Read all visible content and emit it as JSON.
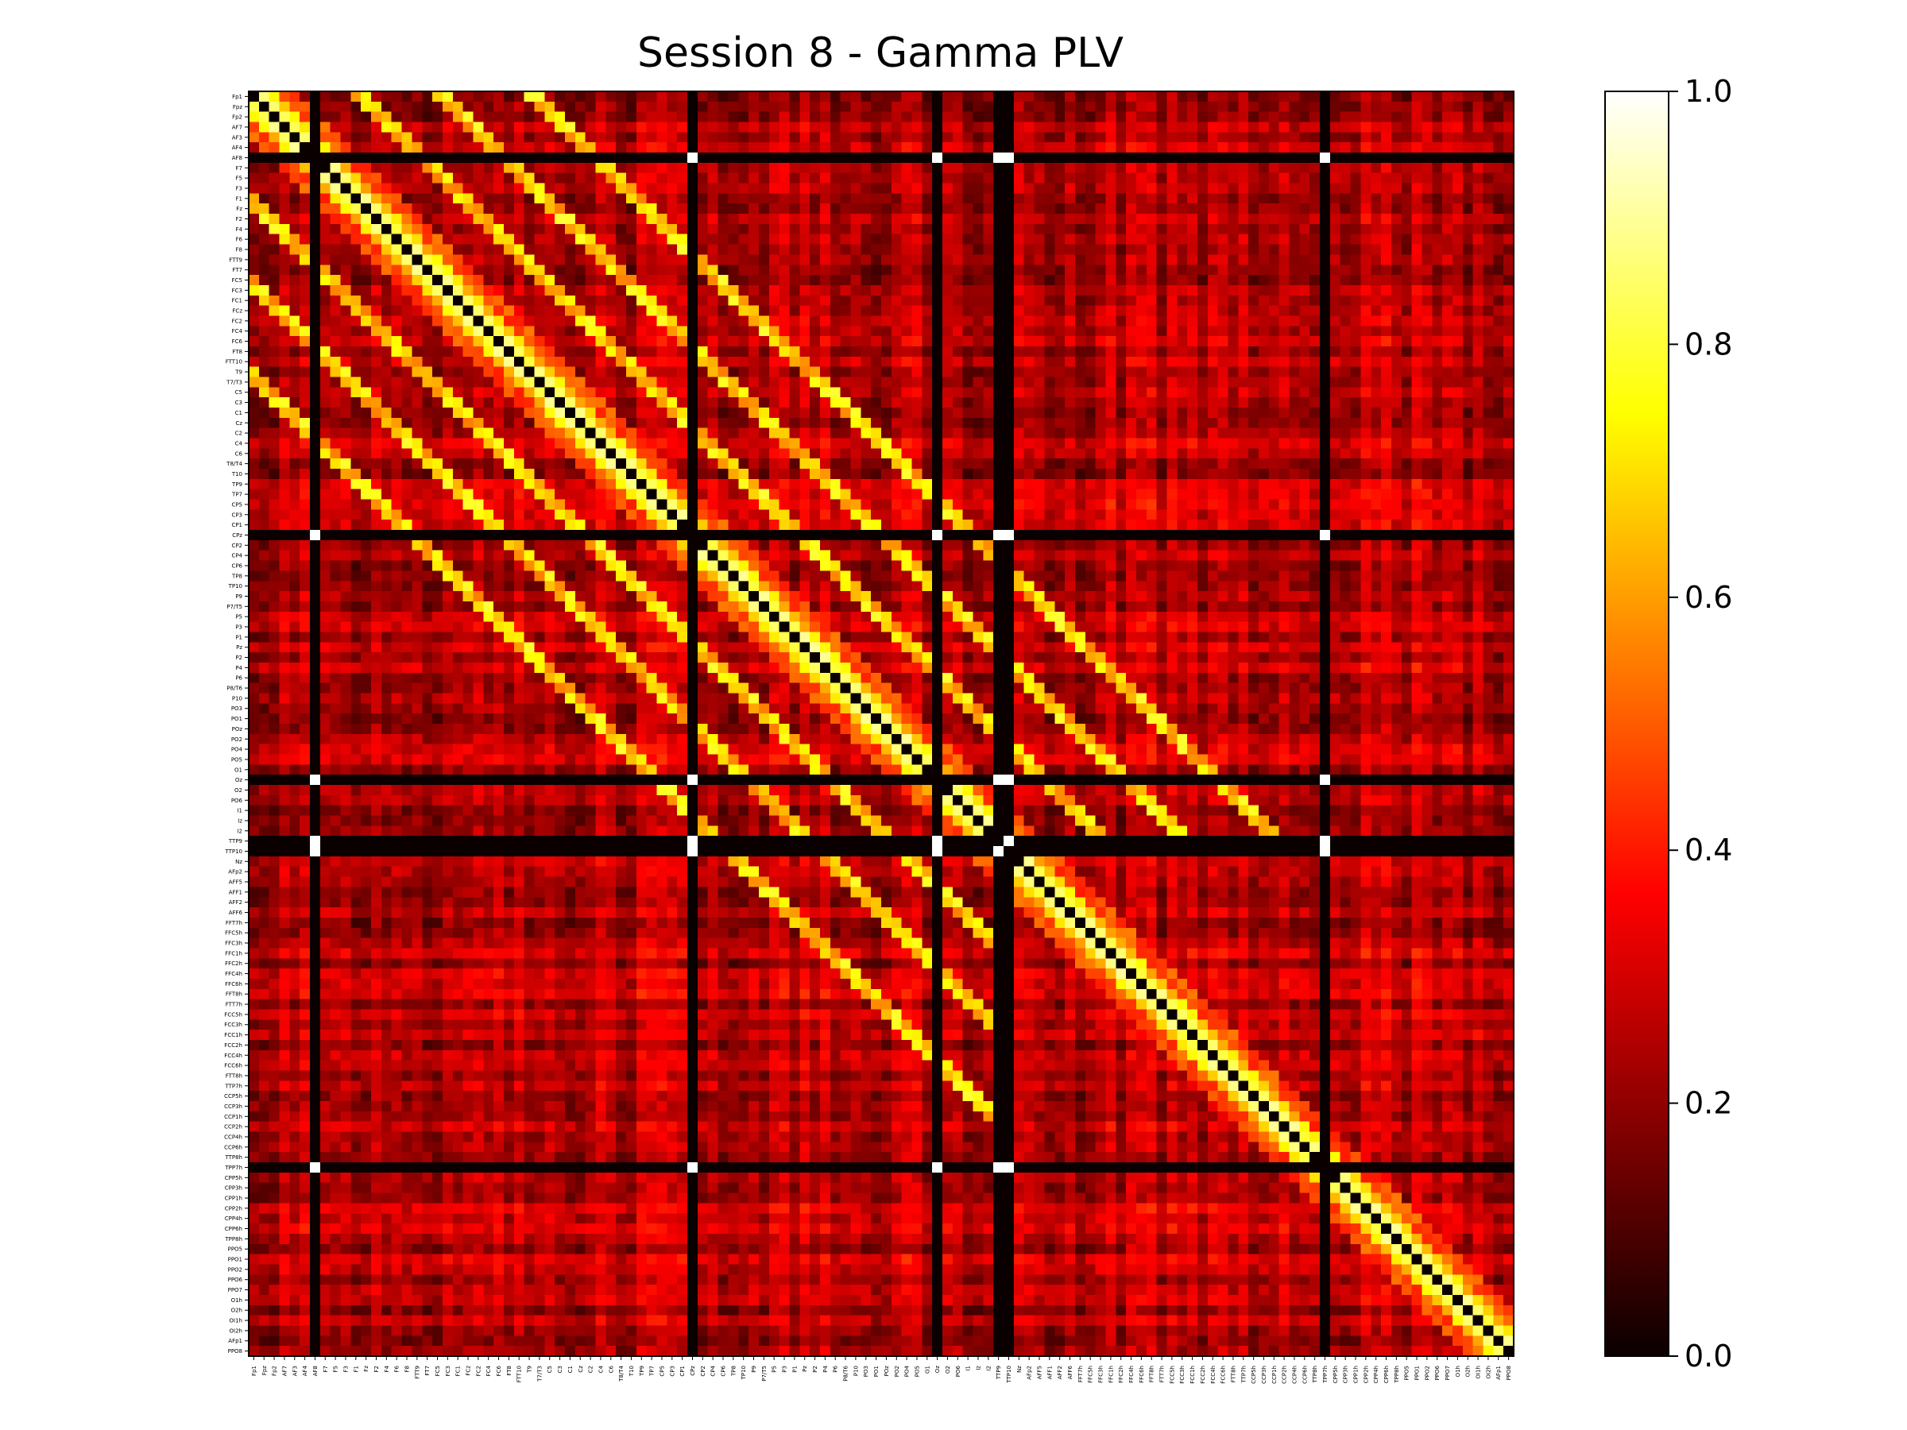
{
  "chart_data": {
    "type": "heatmap",
    "title": "Session 8 - Gamma PLV",
    "xlabel": "",
    "ylabel": "",
    "colormap": "hot",
    "colorbar": {
      "range": [
        0.0,
        1.0
      ],
      "ticks": [
        "0.0",
        "0.2",
        "0.4",
        "0.6",
        "0.8",
        "1.0"
      ]
    },
    "labels": [
      "Fp1",
      "Fpz",
      "Fp2",
      "AF7",
      "AF3",
      "AF4",
      "AF8",
      "F7",
      "F5",
      "F3",
      "F1",
      "Fz",
      "F2",
      "F4",
      "F6",
      "F8",
      "FTT9",
      "FT7",
      "FC5",
      "FC3",
      "FC1",
      "FCz",
      "FC2",
      "FC4",
      "FC6",
      "FT8",
      "FTT10",
      "T9",
      "T7/T3",
      "C5",
      "C3",
      "C1",
      "Cz",
      "C2",
      "C4",
      "C6",
      "T8/T4",
      "T10",
      "TP9",
      "TP7",
      "CP5",
      "CP3",
      "CP1",
      "CPz",
      "CP2",
      "CP4",
      "CP6",
      "TP8",
      "TP10",
      "P9",
      "P7/T5",
      "P5",
      "P3",
      "P1",
      "Pz",
      "P2",
      "P4",
      "P6",
      "P8/T6",
      "P10",
      "PO3",
      "PO1",
      "POz",
      "PO2",
      "PO4",
      "PO5",
      "O1",
      "Oz",
      "O2",
      "PO6",
      "I1",
      "Iz",
      "I2",
      "TTP9",
      "TTP10",
      "Nz",
      "AFp2",
      "AFF5",
      "AFF1",
      "AFF2",
      "AFF6",
      "FFT7h",
      "FFC5h",
      "FFC3h",
      "FFC1h",
      "FFC2h",
      "FFC4h",
      "FFC6h",
      "FFT8h",
      "FTT7h",
      "FCC5h",
      "FCC3h",
      "FCC1h",
      "FCC2h",
      "FCC4h",
      "FCC6h",
      "FTT8h",
      "TTP7h",
      "CCP5h",
      "CCP3h",
      "CCP1h",
      "CCP2h",
      "CCP4h",
      "CCP6h",
      "TTP8h",
      "TPP7h",
      "CPP5h",
      "CPP3h",
      "CPP1h",
      "CPP2h",
      "CPP4h",
      "CPP6h",
      "TPP8h",
      "PPO5",
      "PPO1",
      "PPO2",
      "PPO6",
      "PPO7",
      "O1h",
      "O2h",
      "OI1h",
      "OI2h",
      "AFp1",
      "PPO8"
    ],
    "dead_channels": [
      "AF8",
      "CPz",
      "Oz",
      "TTP9",
      "TTP10",
      "TPP7h"
    ],
    "value_summary": {
      "diagonal": 0.0,
      "dead_channel_rows": 0.0,
      "dead_channel_mutual": 1.0,
      "near_diagonal_typical": 0.85,
      "background_typical": 0.3
    }
  }
}
